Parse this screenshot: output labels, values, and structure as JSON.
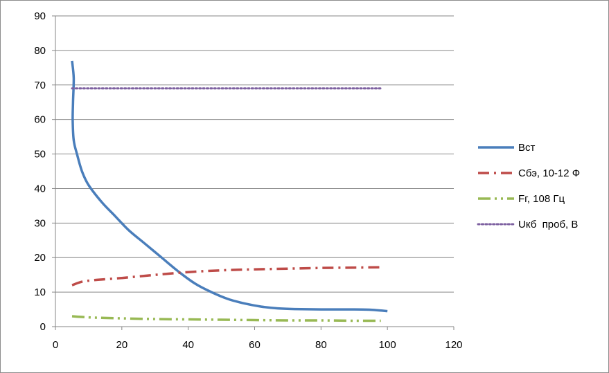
{
  "chart_data": {
    "type": "line",
    "title": "",
    "xlabel": "",
    "ylabel": "",
    "xlim": [
      0,
      120
    ],
    "ylim": [
      0,
      90
    ],
    "x_ticks": [
      "0",
      "20",
      "40",
      "60",
      "80",
      "100",
      "120"
    ],
    "y_ticks": [
      "0",
      "10",
      "20",
      "30",
      "40",
      "50",
      "60",
      "70",
      "80",
      "90"
    ],
    "grid": "horizontal",
    "legend_position": "right",
    "series": [
      {
        "name": "Вст",
        "color": "#4a7ebb",
        "style": "solid",
        "points": [
          [
            5,
            77
          ],
          [
            5.5,
            72
          ],
          [
            5.3,
            65
          ],
          [
            5.2,
            60
          ],
          [
            5.5,
            54
          ],
          [
            6.5,
            50
          ],
          [
            8,
            45
          ],
          [
            10,
            41
          ],
          [
            14,
            36
          ],
          [
            18,
            32
          ],
          [
            22,
            28
          ],
          [
            27,
            24
          ],
          [
            32,
            20
          ],
          [
            37,
            16
          ],
          [
            42,
            12.5
          ],
          [
            47,
            10
          ],
          [
            52,
            8
          ],
          [
            57,
            6.7
          ],
          [
            62,
            5.8
          ],
          [
            67,
            5.3
          ],
          [
            72,
            5.1
          ],
          [
            80,
            5
          ],
          [
            90,
            5
          ],
          [
            95,
            4.9
          ],
          [
            100,
            4.5
          ]
        ]
      },
      {
        "name": "Сбэ, 10-12 Ф",
        "color": "#be4b48",
        "style": "dashdot",
        "points": [
          [
            5,
            12
          ],
          [
            8,
            13
          ],
          [
            12,
            13.5
          ],
          [
            20,
            14.1
          ],
          [
            30,
            15
          ],
          [
            40,
            15.8
          ],
          [
            50,
            16.3
          ],
          [
            60,
            16.6
          ],
          [
            70,
            16.8
          ],
          [
            80,
            17
          ],
          [
            90,
            17.1
          ],
          [
            98,
            17.2
          ]
        ]
      },
      {
        "name": "Fг, 108 Гц",
        "color": "#98b954",
        "style": "dashdotdot",
        "points": [
          [
            5,
            3
          ],
          [
            8,
            2.8
          ],
          [
            12,
            2.6
          ],
          [
            20,
            2.4
          ],
          [
            30,
            2.2
          ],
          [
            40,
            2.1
          ],
          [
            50,
            2
          ],
          [
            60,
            1.9
          ],
          [
            70,
            1.8
          ],
          [
            80,
            1.8
          ],
          [
            90,
            1.7
          ],
          [
            98,
            1.7
          ]
        ]
      },
      {
        "name": "Uкб  проб, В",
        "color": "#7d60a0",
        "style": "dotted",
        "points": [
          [
            5,
            69
          ],
          [
            98,
            69
          ]
        ]
      }
    ]
  }
}
